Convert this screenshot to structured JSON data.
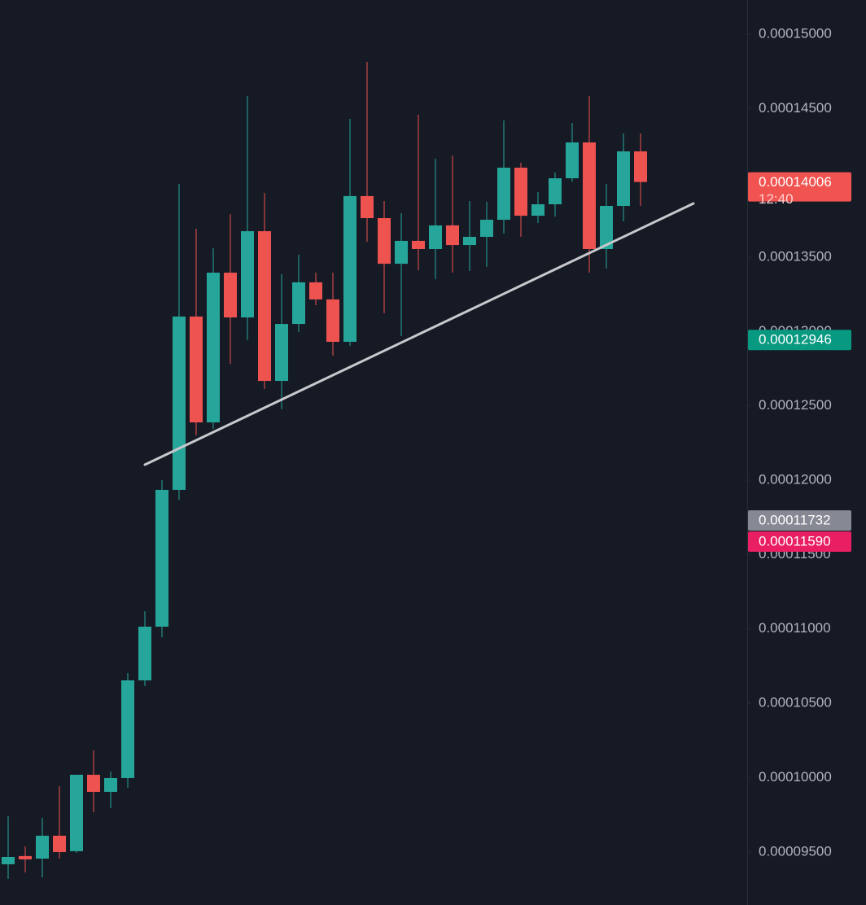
{
  "chart_data": {
    "type": "candlestick",
    "open": [
      9.417e-05,
      9.472e-05,
      9.455e-05,
      9.609e-05,
      9.505e-05,
      0.00010019,
      9.904e-05,
      9.997e-05,
      0.00010654,
      0.00011015,
      0.00011935,
      0.00013101,
      0.00012389,
      0.00013396,
      0.00013095,
      0.00013675,
      0.00012668,
      0.00013051,
      0.00013331,
      0.00013216,
      0.00012931,
      0.00013911,
      0.00013763,
      0.00013456,
      0.0001361,
      0.00013555,
      0.00013714,
      0.00013582,
      0.00013637,
      0.00013752,
      0.00014102,
      0.00013779,
      0.00013856,
      0.00014031,
      0.00014272,
      0.00013555,
      0.00013845,
      0.00014212
    ],
    "high": [
      9.74e-05,
      9.537e-05,
      9.729e-05,
      9.942e-05,
      0.00010019,
      0.00010183,
      0.00010041,
      0.00010703,
      0.00011119,
      0.00012001,
      0.00013993,
      0.00013692,
      0.0001356,
      0.0001379,
      0.00014584,
      0.00013933,
      0.00013385,
      0.00013517,
      0.00013396,
      0.00013396,
      0.00014431,
      0.00014814,
      0.00013878,
      0.00013796,
      0.00014458,
      0.00014163,
      0.00014184,
      0.00013878,
      0.00013872,
      0.0001442,
      0.00014135,
      0.00013938,
      0.0001407,
      0.00014403,
      0.00014584,
      0.00013993,
      0.00014332,
      0.00014332
    ],
    "low": [
      9.319e-05,
      9.362e-05,
      9.329e-05,
      9.455e-05,
      9.494e-05,
      9.767e-05,
      9.795e-05,
      9.932e-05,
      0.00010616,
      0.00010944,
      0.00011869,
      0.00012302,
      0.00012345,
      0.00012783,
      0.00012942,
      0.00012614,
      0.00012477,
      0.00012997,
      0.00013177,
      0.00012838,
      0.00012904,
      0.00013604,
      0.00013123,
      0.00012969,
      0.00013413,
      0.00013352,
      0.00013396,
      0.00013407,
      0.00013435,
      0.00013659,
      0.00013637,
      0.0001373,
      0.00013774,
      0.00014009,
      0.00013396,
      0.00013424,
      0.00013741,
      0.00013845
    ],
    "close": [
      9.466e-05,
      9.45e-05,
      9.609e-05,
      9.499e-05,
      0.00010019,
      9.904e-05,
      9.997e-05,
      0.00010654,
      0.00011015,
      0.00011935,
      0.00013101,
      0.00012389,
      0.00013396,
      0.00013095,
      0.00013675,
      0.00012668,
      0.00013051,
      0.00013331,
      0.00013216,
      0.00012931,
      0.00013911,
      0.00013763,
      0.00013456,
      0.0001361,
      0.00013555,
      0.00013714,
      0.00013582,
      0.00013637,
      0.00013752,
      0.00014102,
      0.00013779,
      0.00013856,
      0.00014031,
      0.00014272,
      0.00013555,
      0.00013845,
      0.00014212,
      0.00014006
    ],
    "up_color": "#26a69a",
    "down_color": "#ef5350",
    "ylim": [
      9.143e-05,
      0.0001523
    ],
    "yticks": [
      {
        "value": 0.00015,
        "label": "0.00015000"
      },
      {
        "value": 0.000145,
        "label": "0.00014500"
      },
      {
        "value": 0.00014,
        "label": "0.00014000"
      },
      {
        "value": 0.000135,
        "label": "0.00013500"
      },
      {
        "value": 0.00013,
        "label": "0.00013000"
      },
      {
        "value": 0.000125,
        "label": "0.00012500"
      },
      {
        "value": 0.00012,
        "label": "0.00012000"
      },
      {
        "value": 0.000115,
        "label": "0.00011500"
      },
      {
        "value": 0.00011,
        "label": "0.00011000"
      },
      {
        "value": 0.000105,
        "label": "0.00010500"
      },
      {
        "value": 0.0001,
        "label": "0.00010000"
      },
      {
        "value": 9.5e-05,
        "label": "0.00009500"
      }
    ],
    "price_labels": [
      {
        "value": 0.00014006,
        "label": "0.00014006",
        "sublabel": "12:40",
        "color": "#f05350"
      },
      {
        "value": 0.00012946,
        "label": "0.00012946",
        "color": "#089981"
      },
      {
        "value": 0.00011732,
        "label": "0.00011732",
        "color": "#868993"
      },
      {
        "value": 0.0001159,
        "label": "0.00011590",
        "color": "#e91e63"
      }
    ]
  }
}
